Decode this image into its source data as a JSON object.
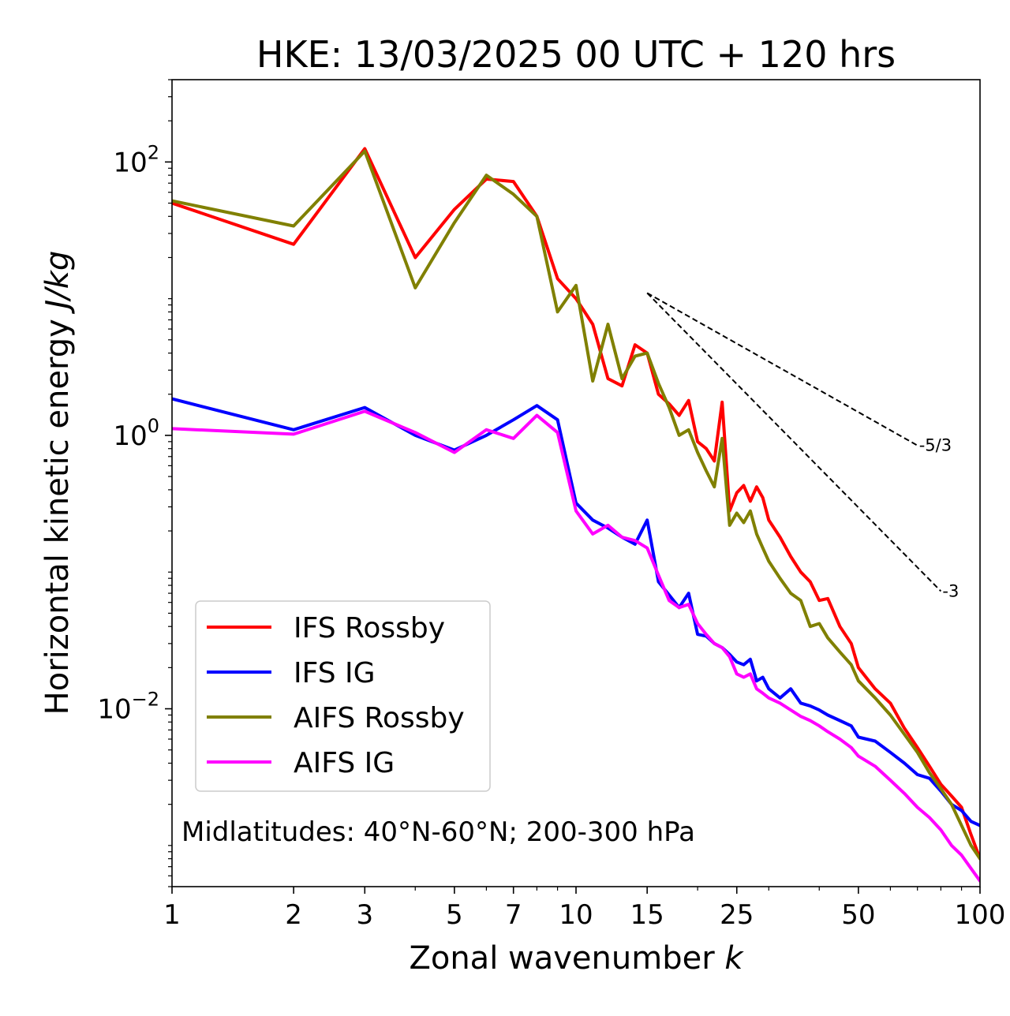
{
  "chart_data": {
    "type": "line",
    "title": "HKE: 13/03/2025 00 UTC + 120 hrs",
    "xlabel_main": "Zonal wavenumber ",
    "xlabel_var": "k",
    "ylabel_main": "Horizontal kinetic energy ",
    "ylabel_var": "J/kg",
    "x_scale": "log",
    "y_scale": "log",
    "xlim": [
      1,
      100
    ],
    "ylim": [
      0.0005,
      400
    ],
    "x_ticks": [
      1,
      2,
      3,
      5,
      7,
      10,
      15,
      25,
      50,
      100
    ],
    "x_tick_labels": [
      "1",
      "2",
      "3",
      "5",
      "7",
      "10",
      "15",
      "25",
      "50",
      "100"
    ],
    "y_ticks": [
      {
        "value": 100,
        "base": "10",
        "exp": "2"
      },
      {
        "value": 1,
        "base": "10",
        "exp": "0"
      },
      {
        "value": 0.01,
        "base": "10",
        "exp": "−2"
      }
    ],
    "legend_position": "lower-left",
    "annotation": "Midlatitudes: 40°N-60°N; 200-300 hPa",
    "reference_lines": [
      {
        "label": "-5/3",
        "slope": -1.6667,
        "x0": 15,
        "y0": 11,
        "x1": 70
      },
      {
        "label": "-3",
        "slope": -3,
        "x0": 15,
        "y0": 11,
        "x1": 80
      }
    ],
    "series": [
      {
        "name": "IFS Rossby",
        "color": "#ff0000",
        "x": [
          1,
          2,
          3,
          4,
          5,
          6,
          7,
          8,
          9,
          10,
          11,
          12,
          13,
          14,
          15,
          16,
          17,
          18,
          19,
          20,
          21,
          22,
          23,
          24,
          25,
          26,
          27,
          28,
          29,
          30,
          32,
          34,
          36,
          38,
          40,
          42,
          45,
          48,
          50,
          55,
          60,
          65,
          70,
          75,
          80,
          85,
          90,
          95,
          100
        ],
        "y": [
          50,
          25,
          125,
          20,
          45,
          75,
          72,
          40,
          14,
          10,
          6.5,
          2.6,
          2.3,
          4.6,
          4.0,
          2.0,
          1.7,
          1.4,
          1.8,
          0.9,
          0.8,
          0.65,
          1.75,
          0.28,
          0.38,
          0.43,
          0.33,
          0.42,
          0.35,
          0.24,
          0.18,
          0.13,
          0.1,
          0.085,
          0.062,
          0.064,
          0.04,
          0.03,
          0.02,
          0.014,
          0.011,
          0.0072,
          0.0052,
          0.0038,
          0.0028,
          0.0023,
          0.0019,
          0.0012,
          0.0008
        ]
      },
      {
        "name": "IFS IG",
        "color": "#0000ff",
        "x": [
          1,
          2,
          3,
          4,
          5,
          6,
          7,
          8,
          9,
          10,
          11,
          12,
          13,
          14,
          15,
          16,
          17,
          18,
          19,
          20,
          21,
          22,
          23,
          24,
          25,
          26,
          27,
          28,
          29,
          30,
          32,
          34,
          36,
          38,
          40,
          42,
          45,
          48,
          50,
          55,
          60,
          65,
          70,
          75,
          80,
          85,
          90,
          95,
          100
        ],
        "y": [
          1.85,
          1.1,
          1.6,
          1.0,
          0.78,
          1.0,
          1.3,
          1.65,
          1.3,
          0.32,
          0.24,
          0.21,
          0.18,
          0.16,
          0.24,
          0.085,
          0.068,
          0.055,
          0.07,
          0.035,
          0.034,
          0.03,
          0.028,
          0.025,
          0.022,
          0.021,
          0.023,
          0.016,
          0.017,
          0.014,
          0.012,
          0.014,
          0.011,
          0.0105,
          0.0098,
          0.009,
          0.0082,
          0.0075,
          0.0062,
          0.0058,
          0.0048,
          0.004,
          0.0033,
          0.0031,
          0.0025,
          0.002,
          0.0018,
          0.0015,
          0.0014
        ]
      },
      {
        "name": "AIFS Rossby",
        "color": "#808000",
        "x": [
          1,
          2,
          3,
          4,
          5,
          6,
          7,
          8,
          9,
          10,
          11,
          12,
          13,
          14,
          15,
          16,
          17,
          18,
          19,
          20,
          21,
          22,
          23,
          24,
          25,
          26,
          27,
          28,
          29,
          30,
          32,
          34,
          36,
          38,
          40,
          42,
          45,
          48,
          50,
          55,
          60,
          65,
          70,
          75,
          80,
          85,
          90,
          95,
          100
        ],
        "y": [
          52,
          34,
          120,
          12,
          36,
          80,
          58,
          40,
          8.0,
          12.5,
          2.5,
          6.5,
          2.6,
          3.8,
          4.0,
          2.4,
          1.6,
          1.0,
          1.1,
          0.75,
          0.55,
          0.42,
          0.95,
          0.22,
          0.27,
          0.23,
          0.28,
          0.19,
          0.15,
          0.12,
          0.09,
          0.07,
          0.062,
          0.04,
          0.042,
          0.033,
          0.026,
          0.021,
          0.016,
          0.012,
          0.009,
          0.0065,
          0.0048,
          0.0034,
          0.0026,
          0.002,
          0.0014,
          0.001,
          0.0008
        ]
      },
      {
        "name": "AIFS IG",
        "color": "#ff00ff",
        "x": [
          1,
          2,
          3,
          4,
          5,
          6,
          7,
          8,
          9,
          10,
          11,
          12,
          13,
          14,
          15,
          16,
          17,
          18,
          19,
          20,
          21,
          22,
          23,
          24,
          25,
          26,
          27,
          28,
          29,
          30,
          32,
          34,
          36,
          38,
          40,
          42,
          45,
          48,
          50,
          55,
          60,
          65,
          70,
          75,
          80,
          85,
          90,
          95,
          100
        ],
        "y": [
          1.12,
          1.02,
          1.5,
          1.05,
          0.75,
          1.1,
          0.95,
          1.4,
          1.05,
          0.28,
          0.19,
          0.22,
          0.18,
          0.17,
          0.15,
          0.095,
          0.062,
          0.055,
          0.058,
          0.042,
          0.035,
          0.03,
          0.028,
          0.024,
          0.018,
          0.017,
          0.018,
          0.014,
          0.013,
          0.012,
          0.011,
          0.0098,
          0.0088,
          0.0082,
          0.0075,
          0.0068,
          0.006,
          0.0052,
          0.0045,
          0.0038,
          0.003,
          0.0024,
          0.0019,
          0.0016,
          0.0013,
          0.001,
          0.00085,
          0.00068,
          0.00055
        ]
      }
    ]
  }
}
